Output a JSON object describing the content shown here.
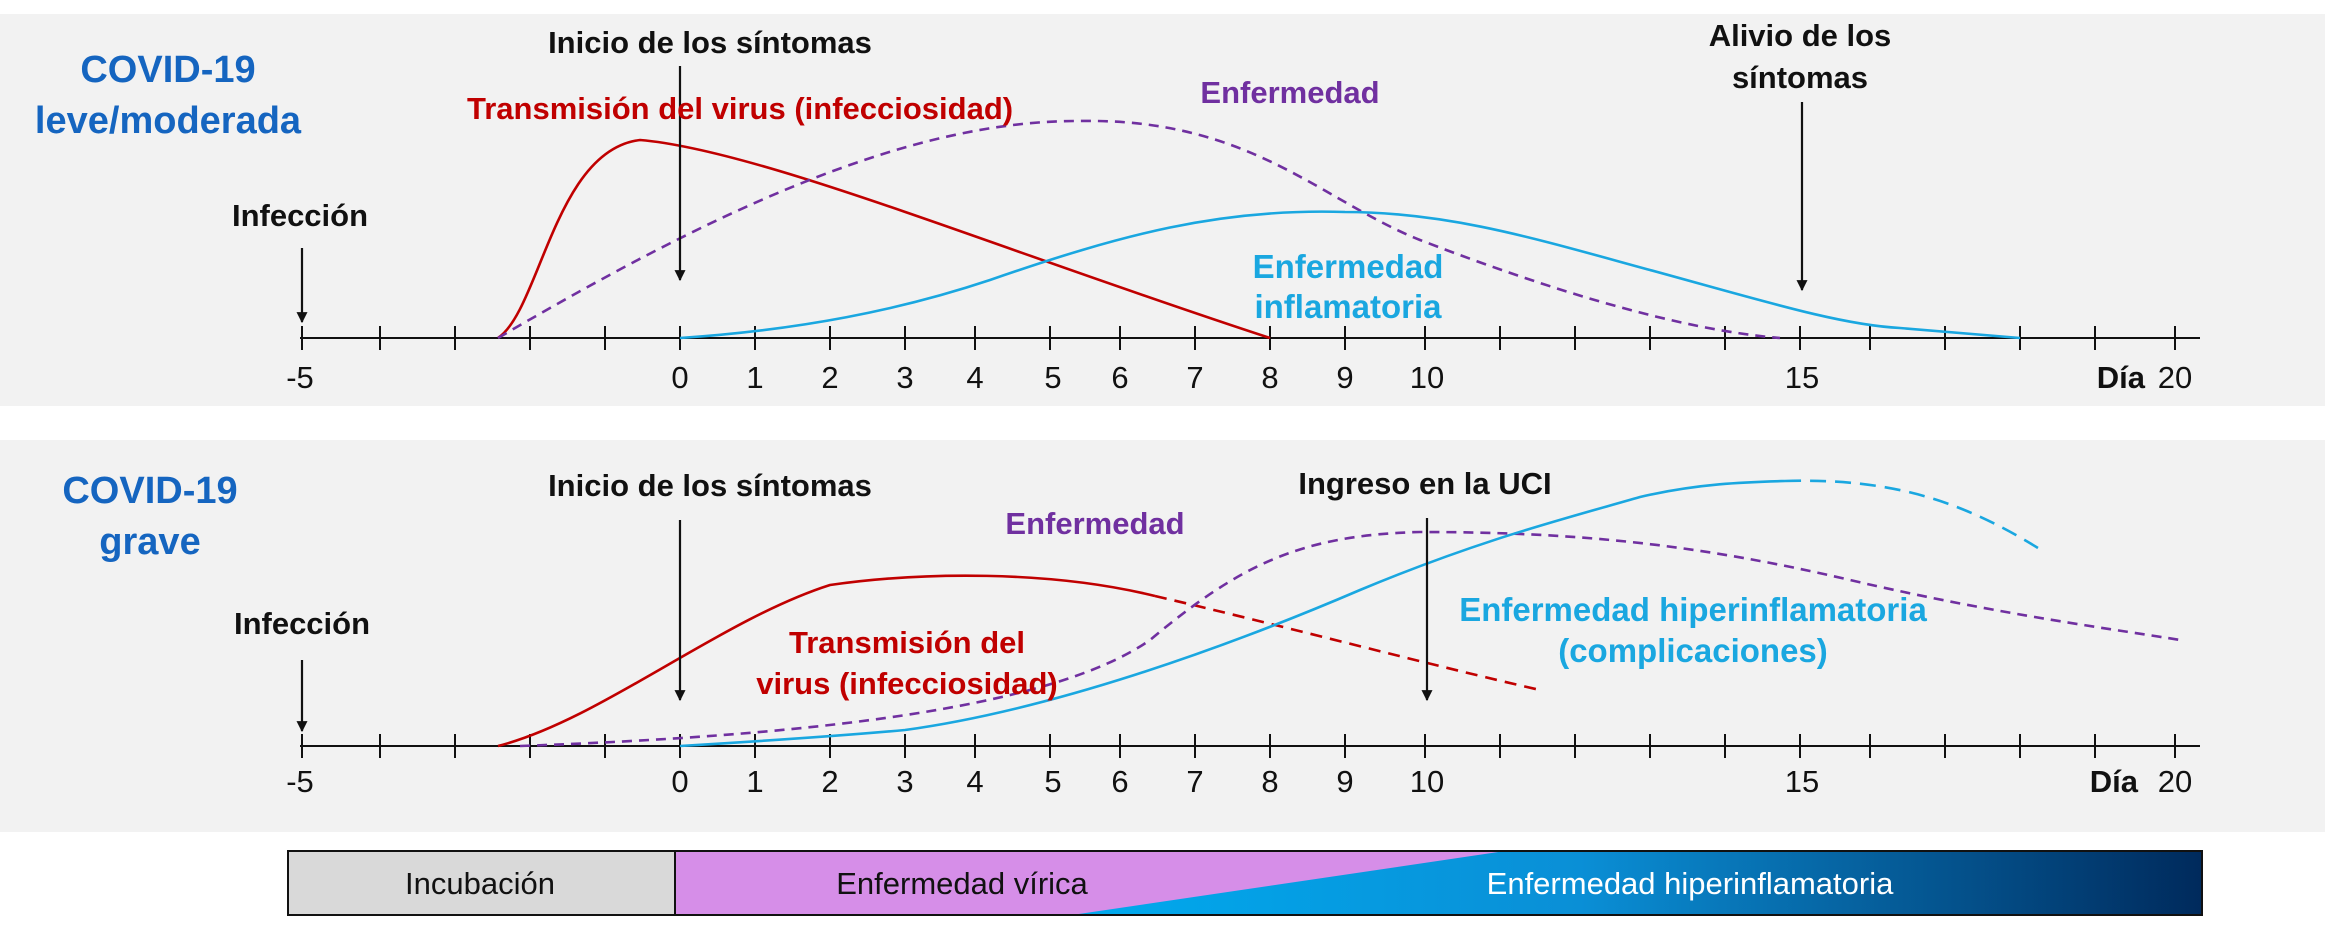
{
  "colors": {
    "panel_bg": "#f2f2f2",
    "blue_title": "#1565c0",
    "transmission": "#c00000",
    "disease": "#7030a0",
    "inflammation": "#1aa7e0",
    "text": "#111111",
    "incubation_bar": "#d9d9d9",
    "viral_bar": "#d68ee8",
    "hyper_start": "#00aaee",
    "hyper_end": "#002a5c"
  },
  "ticks": [
    "-5",
    "0",
    "1",
    "2",
    "3",
    "4",
    "5",
    "6",
    "7",
    "8",
    "9",
    "10",
    "15",
    "20"
  ],
  "axis_unit": "Día",
  "panel_top": {
    "title_line1": "COVID-19",
    "title_line2": "leve/moderada",
    "infection": "Infección",
    "symptom_onset": "Inicio de los síntomas",
    "transmission": "Transmisión del virus (infecciosidad)",
    "disease": "Enfermedad",
    "inflammatory_line1": "Enfermedad",
    "inflammatory_line2": "inflamatoria",
    "relief_line1": "Alivio de los",
    "relief_line2": "síntomas"
  },
  "panel_bottom": {
    "title_line1": "COVID-19",
    "title_line2": "grave",
    "infection": "Infección",
    "symptom_onset": "Inicio de los síntomas",
    "disease": "Enfermedad",
    "icu": "Ingreso en la UCI",
    "transmission_line1": "Transmisión del",
    "transmission_line2": "virus (infecciosidad)",
    "hyper_line1": "Enfermedad hiperinflamatoria",
    "hyper_line2": "(complicaciones)"
  },
  "phase_bar": {
    "incubation": "Incubación",
    "viral": "Enfermedad vírica",
    "hyper": "Enfermedad hiperinflamatoria"
  }
}
